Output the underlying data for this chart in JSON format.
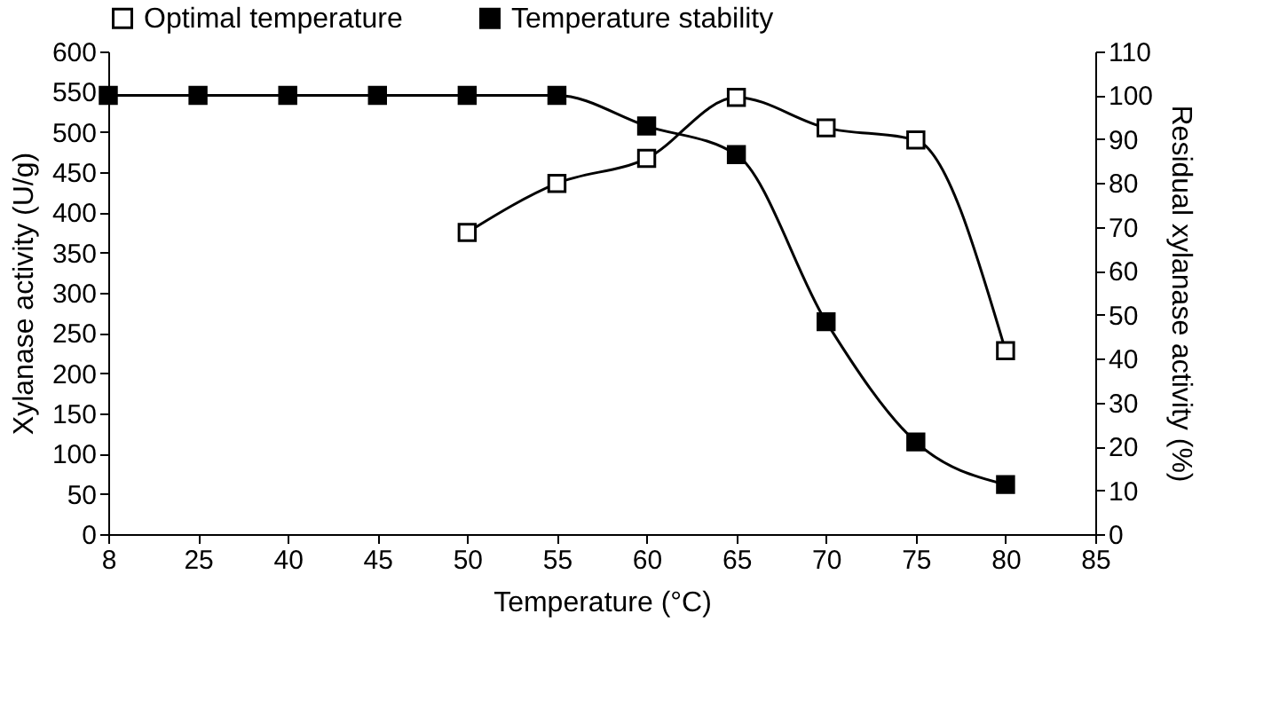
{
  "chart_data": {
    "type": "line",
    "xlabel": "Temperature (°C)",
    "ylabel": "Xylanase activity (U/g)",
    "y2label": "Residual xylanase activity (%)",
    "categories": [
      "8",
      "25",
      "40",
      "45",
      "50",
      "55",
      "60",
      "65",
      "70",
      "75",
      "80",
      "85"
    ],
    "series": [
      {
        "name": "Optimal temperature",
        "color": "#000000",
        "values": [
          null,
          null,
          null,
          null,
          375,
          436,
          467,
          543,
          505,
          490,
          228,
          null
        ]
      },
      {
        "name": "Temperature stability",
        "color": "#000000",
        "axis": "y2",
        "values": [
          100,
          100,
          100,
          100,
          100,
          100,
          93,
          86.5,
          48.4,
          21,
          11.3,
          null
        ]
      }
    ],
    "ylim": [
      0,
      600
    ],
    "yticks": [
      0,
      50,
      100,
      150,
      200,
      250,
      300,
      350,
      400,
      450,
      500,
      550,
      600
    ],
    "y2lim": [
      0,
      110
    ],
    "y2ticks": [
      0,
      10,
      20,
      30,
      40,
      50,
      60,
      70,
      80,
      90,
      100,
      110
    ],
    "marker": "square",
    "legend": "top",
    "grid": false
  }
}
